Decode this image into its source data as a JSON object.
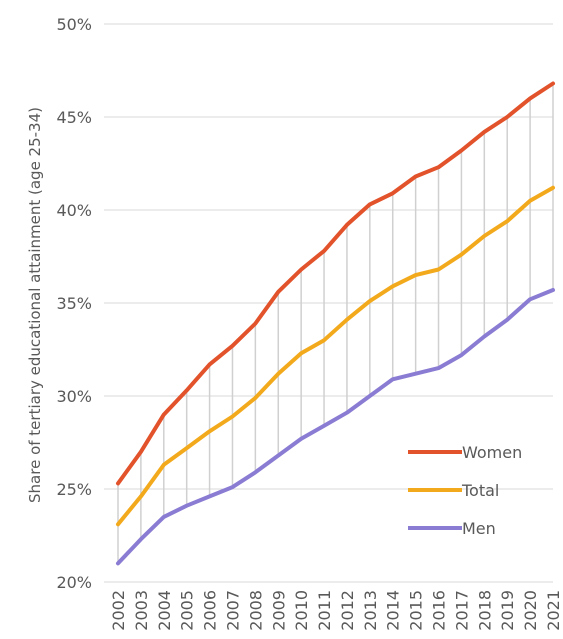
{
  "chart_data": {
    "type": "line",
    "title": "",
    "xlabel": "",
    "ylabel": "Share of tertiary educational attainment (age 25-34)",
    "ylim": [
      20,
      50
    ],
    "yticks": [
      20,
      25,
      30,
      35,
      40,
      45,
      50
    ],
    "ytick_labels": [
      "20%",
      "25%",
      "30%",
      "35%",
      "40%",
      "45%",
      "50%"
    ],
    "categories": [
      "2002",
      "2003",
      "2004",
      "2005",
      "2006",
      "2007",
      "2008",
      "2009",
      "2010",
      "2011",
      "2012",
      "2013",
      "2014",
      "2015",
      "2016",
      "2017",
      "2018",
      "2019",
      "2020",
      "2021"
    ],
    "grid": "horizontal",
    "high_low_lines": true,
    "legend_position": "bottom-right",
    "series": [
      {
        "name": "Women",
        "color": "#E2522B",
        "values": [
          25.3,
          27.0,
          29.0,
          30.3,
          31.7,
          32.7,
          33.9,
          35.6,
          36.8,
          37.8,
          39.2,
          40.3,
          40.9,
          41.8,
          42.3,
          43.2,
          44.2,
          45.0,
          46.0,
          46.8
        ]
      },
      {
        "name": "Total",
        "color": "#F3A91C",
        "values": [
          23.1,
          24.6,
          26.3,
          27.2,
          28.1,
          28.9,
          29.9,
          31.2,
          32.3,
          33.0,
          34.1,
          35.1,
          35.9,
          36.5,
          36.8,
          37.6,
          38.6,
          39.4,
          40.5,
          41.2
        ]
      },
      {
        "name": "Men",
        "color": "#8A7BD3",
        "values": [
          21.0,
          22.3,
          23.5,
          24.1,
          24.6,
          25.1,
          25.9,
          26.8,
          27.7,
          28.4,
          29.1,
          30.0,
          30.9,
          31.2,
          31.5,
          32.2,
          33.2,
          34.1,
          35.2,
          35.7
        ]
      }
    ]
  }
}
